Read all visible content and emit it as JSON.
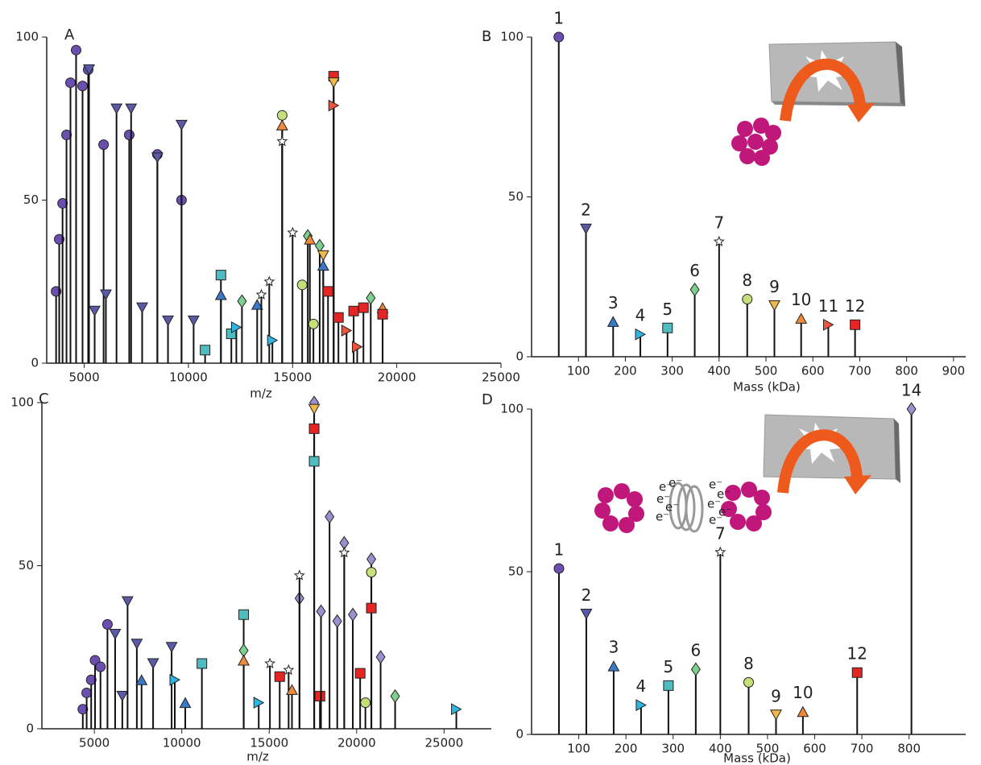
{
  "chart_data": [
    {
      "type": "stem",
      "panel": "A",
      "xlabel": "m/z",
      "xlim": [
        3200,
        25000
      ],
      "ylim": [
        0,
        100
      ],
      "xticks": [
        5000,
        10000,
        15000,
        20000,
        25000
      ],
      "yticks": [
        0,
        50,
        100
      ],
      "x": [
        3650,
        3800,
        3960,
        4150,
        4340,
        4610,
        4920,
        5190,
        5230,
        5500,
        5930,
        6040,
        6550,
        7160,
        7250,
        7780,
        8510,
        8510,
        9020,
        9670,
        9670,
        10250,
        11560,
        11560,
        12570,
        13300,
        13500,
        13880,
        14500,
        14500,
        14500,
        15000,
        15460,
        15730,
        15830,
        16300,
        16470,
        16470,
        16700,
        16970,
        16970,
        16970,
        17200,
        17590,
        17930,
        18100,
        18400,
        18750,
        19320,
        19320,
        16000,
        12060,
        10800,
        12300,
        14030
      ],
      "values": [
        22,
        38,
        49,
        70,
        86,
        96,
        85,
        90,
        90,
        16,
        67,
        21,
        78,
        70,
        78,
        17,
        64,
        63,
        13,
        50,
        73,
        13,
        27,
        21,
        19,
        18,
        21,
        25,
        76,
        73,
        68,
        40,
        24,
        39,
        38,
        36,
        33,
        30,
        22,
        88,
        86,
        79,
        14,
        10,
        16,
        5,
        17,
        20,
        17,
        15,
        12,
        9,
        4,
        11,
        7
      ],
      "markers": [
        "circle",
        "circle",
        "circle",
        "circle",
        "circle",
        "circle",
        "circle",
        "circle",
        "tdown",
        "tdown",
        "circle",
        "tdown",
        "tdown",
        "circle",
        "tdown",
        "tdown",
        "circle",
        "tdown",
        "tdown",
        "circle",
        "tdown",
        "tdown",
        "square",
        "tup",
        "diamond",
        "tup",
        "star",
        "star",
        "circle",
        "tup",
        "star",
        "star",
        "circle",
        "diamond",
        "tup",
        "diamond",
        "tdown",
        "tup",
        "square",
        "square",
        "tdown",
        "tright",
        "square",
        "tright",
        "square",
        "tright",
        "square",
        "diamond",
        "tup",
        "square",
        "circle",
        "square",
        "square",
        "tright",
        "tright"
      ],
      "colors": [
        "#6b4fb0",
        "#6b4fb0",
        "#6b4fb0",
        "#6b4fb0",
        "#6b4fb0",
        "#6b4fb0",
        "#6b4fb0",
        "#6b4fb0",
        "#5a5aa8",
        "#5a5aa8",
        "#6b4fb0",
        "#5a5aa8",
        "#5a5aa8",
        "#6b4fb0",
        "#5a5aa8",
        "#5a5aa8",
        "#6b4fb0",
        "#5a5aa8",
        "#5a5aa8",
        "#6b4fb0",
        "#5a5aa8",
        "#5a5aa8",
        "#4dbdc0",
        "#3a78c8",
        "#7ccf8c",
        "#3a78c8",
        "#ffffff",
        "#ffffff",
        "#c5e07a",
        "#ef8a3a",
        "#ffffff",
        "#ffffff",
        "#c5e07a",
        "#7ccf8c",
        "#ef8a3a",
        "#7ccf8c",
        "#f0b848",
        "#3a78c8",
        "#e52424",
        "#e52424",
        "#f0b848",
        "#f0553a",
        "#e52424",
        "#f0553a",
        "#e52424",
        "#f0553a",
        "#e52424",
        "#7ccf8c",
        "#ef8a3a",
        "#e52424",
        "#c5e07a",
        "#4dbdc0",
        "#4dbdc0",
        "#2fb5e0",
        "#2fb5e0"
      ]
    },
    {
      "type": "stem",
      "panel": "B",
      "xlabel": "Mass (kDa)",
      "xlim": [
        0,
        926
      ],
      "ylim": [
        0,
        100
      ],
      "xticks": [
        100,
        200,
        300,
        400,
        500,
        600,
        700,
        800,
        900
      ],
      "yticks": [
        0,
        50,
        100
      ],
      "x": [
        58,
        116,
        174,
        232,
        290,
        348,
        400,
        460,
        518,
        575,
        633,
        690
      ],
      "values": [
        100,
        40,
        11,
        7,
        9,
        21,
        36,
        18,
        16,
        12,
        10,
        10
      ],
      "peak_labels": [
        "1",
        "2",
        "3",
        "4",
        "5",
        "6",
        "7",
        "8",
        "9",
        "10",
        "11",
        "12"
      ],
      "markers": [
        "circle",
        "tdown",
        "tup",
        "tright",
        "square",
        "diamond",
        "star",
        "circle",
        "tdown",
        "tup",
        "tright",
        "square"
      ],
      "colors": [
        "#6b4fb0",
        "#5a5aa8",
        "#3a78c8",
        "#2fb5e0",
        "#4dbdc0",
        "#7ccf8c",
        "#ffffff",
        "#c5e07a",
        "#f0b848",
        "#ef8a3a",
        "#f0553a",
        "#e52424"
      ]
    },
    {
      "type": "stem",
      "panel": "C",
      "xlabel": "m/z",
      "xlim": [
        2000,
        27700
      ],
      "ylim": [
        0,
        100
      ],
      "xticks": [
        5000,
        10000,
        15000,
        20000,
        25000
      ],
      "yticks": [
        0,
        50,
        100
      ],
      "x": [
        4340,
        4560,
        4820,
        5040,
        5350,
        5750,
        6190,
        6600,
        6900,
        7430,
        7700,
        8360,
        9420,
        9600,
        10200,
        11150,
        13540,
        13540,
        13540,
        14400,
        15040,
        15600,
        16110,
        16300,
        16730,
        16730,
        17570,
        17570,
        17570,
        17570,
        17900,
        18450,
        17960,
        18890,
        19290,
        19290,
        19780,
        20200,
        20840,
        20840,
        20840,
        21370,
        20500,
        22200,
        25700
      ],
      "values": [
        6,
        11,
        15,
        21,
        19,
        32,
        29,
        10,
        39,
        26,
        15,
        20,
        25,
        15,
        8,
        20,
        35,
        24,
        21,
        8,
        20,
        16,
        18,
        12,
        40,
        47,
        100,
        98,
        92,
        82,
        10,
        65,
        36,
        33,
        57,
        54,
        35,
        17,
        52,
        48,
        37,
        22,
        8,
        10,
        6
      ],
      "markers": [
        "circle",
        "circle",
        "circle",
        "circle",
        "circle",
        "circle",
        "tdown",
        "tdown",
        "tdown",
        "tdown",
        "tup",
        "tdown",
        "tdown",
        "tright",
        "tup",
        "square",
        "square",
        "diamond",
        "tup",
        "tright",
        "star",
        "square",
        "star",
        "tup",
        "diamond",
        "star",
        "diamond",
        "tdown",
        "square",
        "square",
        "square",
        "diamond",
        "diamond",
        "diamond",
        "diamond",
        "star",
        "diamond",
        "square",
        "diamond",
        "circle",
        "square",
        "diamond",
        "circle",
        "diamond",
        "tright"
      ],
      "colors": [
        "#6b4fb0",
        "#6b4fb0",
        "#6b4fb0",
        "#6b4fb0",
        "#6b4fb0",
        "#6b4fb0",
        "#5a5aa8",
        "#5a5aa8",
        "#5a5aa8",
        "#5a5aa8",
        "#3a78c8",
        "#5a5aa8",
        "#5a5aa8",
        "#2fb5e0",
        "#3a78c8",
        "#4dbdc0",
        "#4dbdc0",
        "#7ccf8c",
        "#ef8a3a",
        "#2fb5e0",
        "#ffffff",
        "#e52424",
        "#ffffff",
        "#ef8a3a",
        "#9c8fd0",
        "#ffffff",
        "#9c8fd0",
        "#f0b848",
        "#e52424",
        "#4dbdc0",
        "#e52424",
        "#9c8fd0",
        "#9c8fd0",
        "#9c8fd0",
        "#9c8fd0",
        "#ffffff",
        "#9c8fd0",
        "#e52424",
        "#9c8fd0",
        "#c5e07a",
        "#e52424",
        "#9c8fd0",
        "#c5e07a",
        "#7ccf8c",
        "#2fb5e0"
      ]
    },
    {
      "type": "stem",
      "panel": "D",
      "xlabel": "Mass (kDa)",
      "annotation": "e⁻",
      "xlim": [
        0,
        920
      ],
      "ylim": [
        0,
        100
      ],
      "xticks": [
        100,
        200,
        300,
        400,
        500,
        600,
        700,
        800
      ],
      "yticks": [
        0,
        50,
        100
      ],
      "x": [
        58,
        116,
        174,
        232,
        290,
        348,
        400,
        460,
        518,
        575,
        690,
        805
      ],
      "values": [
        51,
        37,
        21,
        9,
        15,
        20,
        56,
        16,
        6,
        7,
        19,
        100
      ],
      "peak_labels": [
        "1",
        "2",
        "3",
        "4",
        "5",
        "6",
        "7",
        "8",
        "9",
        "10",
        "12",
        "14"
      ],
      "markers": [
        "circle",
        "tdown",
        "tup",
        "tright",
        "square",
        "diamond",
        "star",
        "circle",
        "tdown",
        "tup",
        "square",
        "diamond"
      ],
      "colors": [
        "#6b4fb0",
        "#5a5aa8",
        "#3a78c8",
        "#2fb5e0",
        "#4dbdc0",
        "#7ccf8c",
        "#ffffff",
        "#c5e07a",
        "#f0b848",
        "#ef8a3a",
        "#e52424",
        "#9c8fd0"
      ]
    }
  ]
}
